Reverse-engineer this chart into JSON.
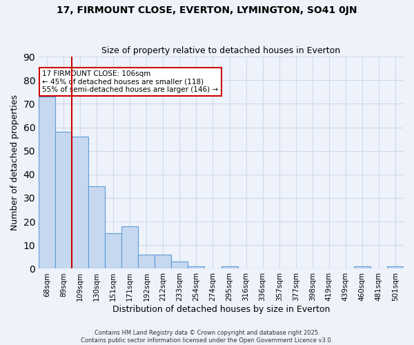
{
  "title1": "17, FIRMOUNT CLOSE, EVERTON, LYMINGTON, SO41 0JN",
  "title2": "Size of property relative to detached houses in Everton",
  "xlabel": "Distribution of detached houses by size in Everton",
  "ylabel": "Number of detached properties",
  "bar_values": [
    73,
    58,
    56,
    35,
    15,
    18,
    6,
    6,
    3,
    1,
    0,
    1,
    0,
    0,
    0,
    0,
    0,
    0,
    0,
    1,
    0,
    1
  ],
  "bin_labels": [
    "68sqm",
    "89sqm",
    "109sqm",
    "130sqm",
    "151sqm",
    "171sqm",
    "192sqm",
    "212sqm",
    "233sqm",
    "254sqm",
    "274sqm",
    "295sqm",
    "316sqm",
    "336sqm",
    "357sqm",
    "377sqm",
    "398sqm",
    "419sqm",
    "439sqm",
    "460sqm",
    "481sqm",
    "501sqm"
  ],
  "bar_color": "#c5d8f0",
  "bar_edge_color": "#5b9bd5",
  "grid_color": "#d0d8e8",
  "background_color": "#eef2fa",
  "vline_x_idx": 2,
  "vline_color": "#cc0000",
  "annotation_text": "17 FIRMOUNT CLOSE: 106sqm\n← 45% of detached houses are smaller (118)\n55% of semi-detached houses are larger (146) →",
  "annotation_box_color": "#ffffff",
  "annotation_box_edge": "#cc0000",
  "ylim": [
    0,
    90
  ],
  "yticks": [
    0,
    10,
    20,
    30,
    40,
    50,
    60,
    70,
    80,
    90
  ],
  "footer1": "Contains HM Land Registry data © Crown copyright and database right 2025.",
  "footer2": "Contains public sector information licensed under the Open Government Licence v3.0."
}
